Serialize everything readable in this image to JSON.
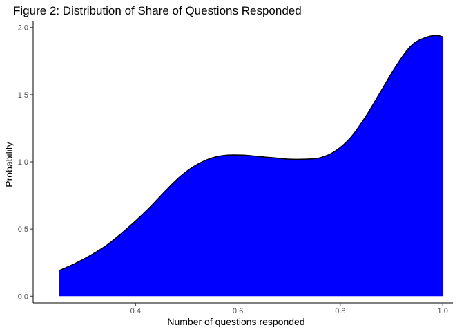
{
  "chart_data": {
    "type": "area",
    "title": "Figure 2: Distribution of Share of Questions Responded",
    "xlabel": "Number of questions responded",
    "ylabel": "Probability",
    "xlim": [
      0.2,
      1.02
    ],
    "ylim": [
      -0.05,
      2.05
    ],
    "x_ticks": [
      0.4,
      0.6,
      0.8,
      1.0
    ],
    "x_tick_labels": [
      "0.4",
      "0.6",
      "0.8",
      "1.0"
    ],
    "y_ticks": [
      0.0,
      0.5,
      1.0,
      1.5,
      2.0
    ],
    "y_tick_labels": [
      "0.0",
      "0.5",
      "1.0",
      "1.5",
      "2.0"
    ],
    "grid": false,
    "legend": "none",
    "fill_color": "#0000ff",
    "line_color": "#000000",
    "series": [
      {
        "x": [
          0.25,
          0.28,
          0.31,
          0.34,
          0.37,
          0.4,
          0.43,
          0.46,
          0.49,
          0.52,
          0.55,
          0.58,
          0.61,
          0.64,
          0.67,
          0.7,
          0.73,
          0.76,
          0.79,
          0.82,
          0.85,
          0.88,
          0.91,
          0.94,
          0.97,
          0.99,
          1.0
        ],
        "y": [
          0.19,
          0.24,
          0.3,
          0.37,
          0.46,
          0.56,
          0.67,
          0.79,
          0.9,
          0.98,
          1.03,
          1.05,
          1.05,
          1.04,
          1.03,
          1.02,
          1.02,
          1.03,
          1.08,
          1.18,
          1.34,
          1.53,
          1.72,
          1.87,
          1.93,
          1.94,
          1.93
        ]
      }
    ]
  }
}
